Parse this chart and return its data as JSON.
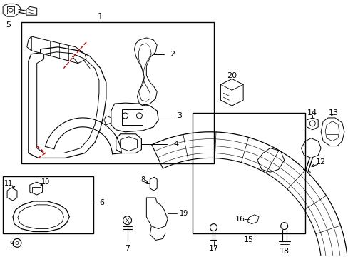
{
  "bg_color": "#ffffff",
  "line_color": "#000000",
  "red_color": "#cc0000",
  "fig_width": 4.89,
  "fig_height": 3.6,
  "dpi": 100
}
